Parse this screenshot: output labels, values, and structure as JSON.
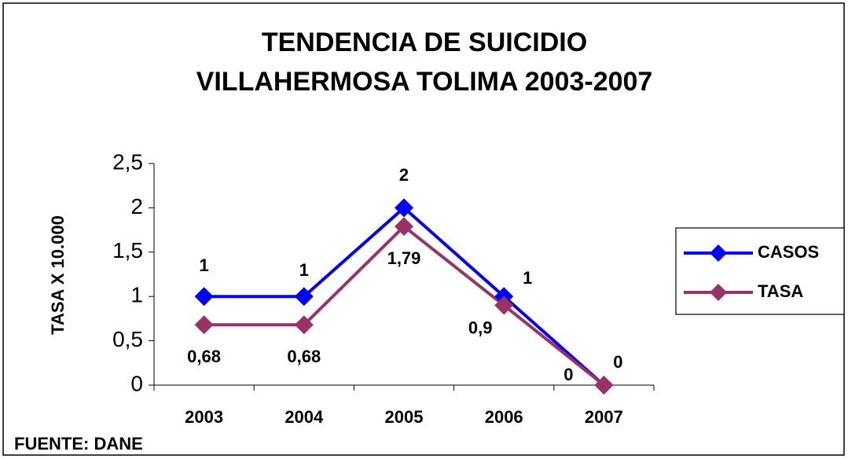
{
  "chart_data": {
    "type": "line",
    "title": [
      "TENDENCIA DE SUICIDIO",
      "VILLAHERMOSA TOLIMA 2003-2007"
    ],
    "y_label": "TASA X 10.000",
    "source": "FUENTE: DANE",
    "categories": [
      "2003",
      "2004",
      "2005",
      "2006",
      "2007"
    ],
    "series": [
      {
        "name": "CASOS",
        "color": "#0000ff",
        "values": [
          1,
          1,
          2,
          1,
          0
        ]
      },
      {
        "name": "TASA",
        "color": "#993366",
        "values": [
          0.68,
          0.68,
          1.79,
          0.9,
          0
        ],
        "value_labels": [
          "0,68",
          "0,68",
          "1,79",
          "0,9",
          "0"
        ]
      }
    ],
    "ylim": [
      0,
      2.5
    ],
    "yticks": [
      0,
      {
        "value": 0.5,
        "label": "0,5"
      },
      1,
      {
        "value": 1.5,
        "label": "1,5"
      },
      2,
      {
        "value": 2.5,
        "label": "2,5"
      }
    ],
    "legend": "right"
  }
}
